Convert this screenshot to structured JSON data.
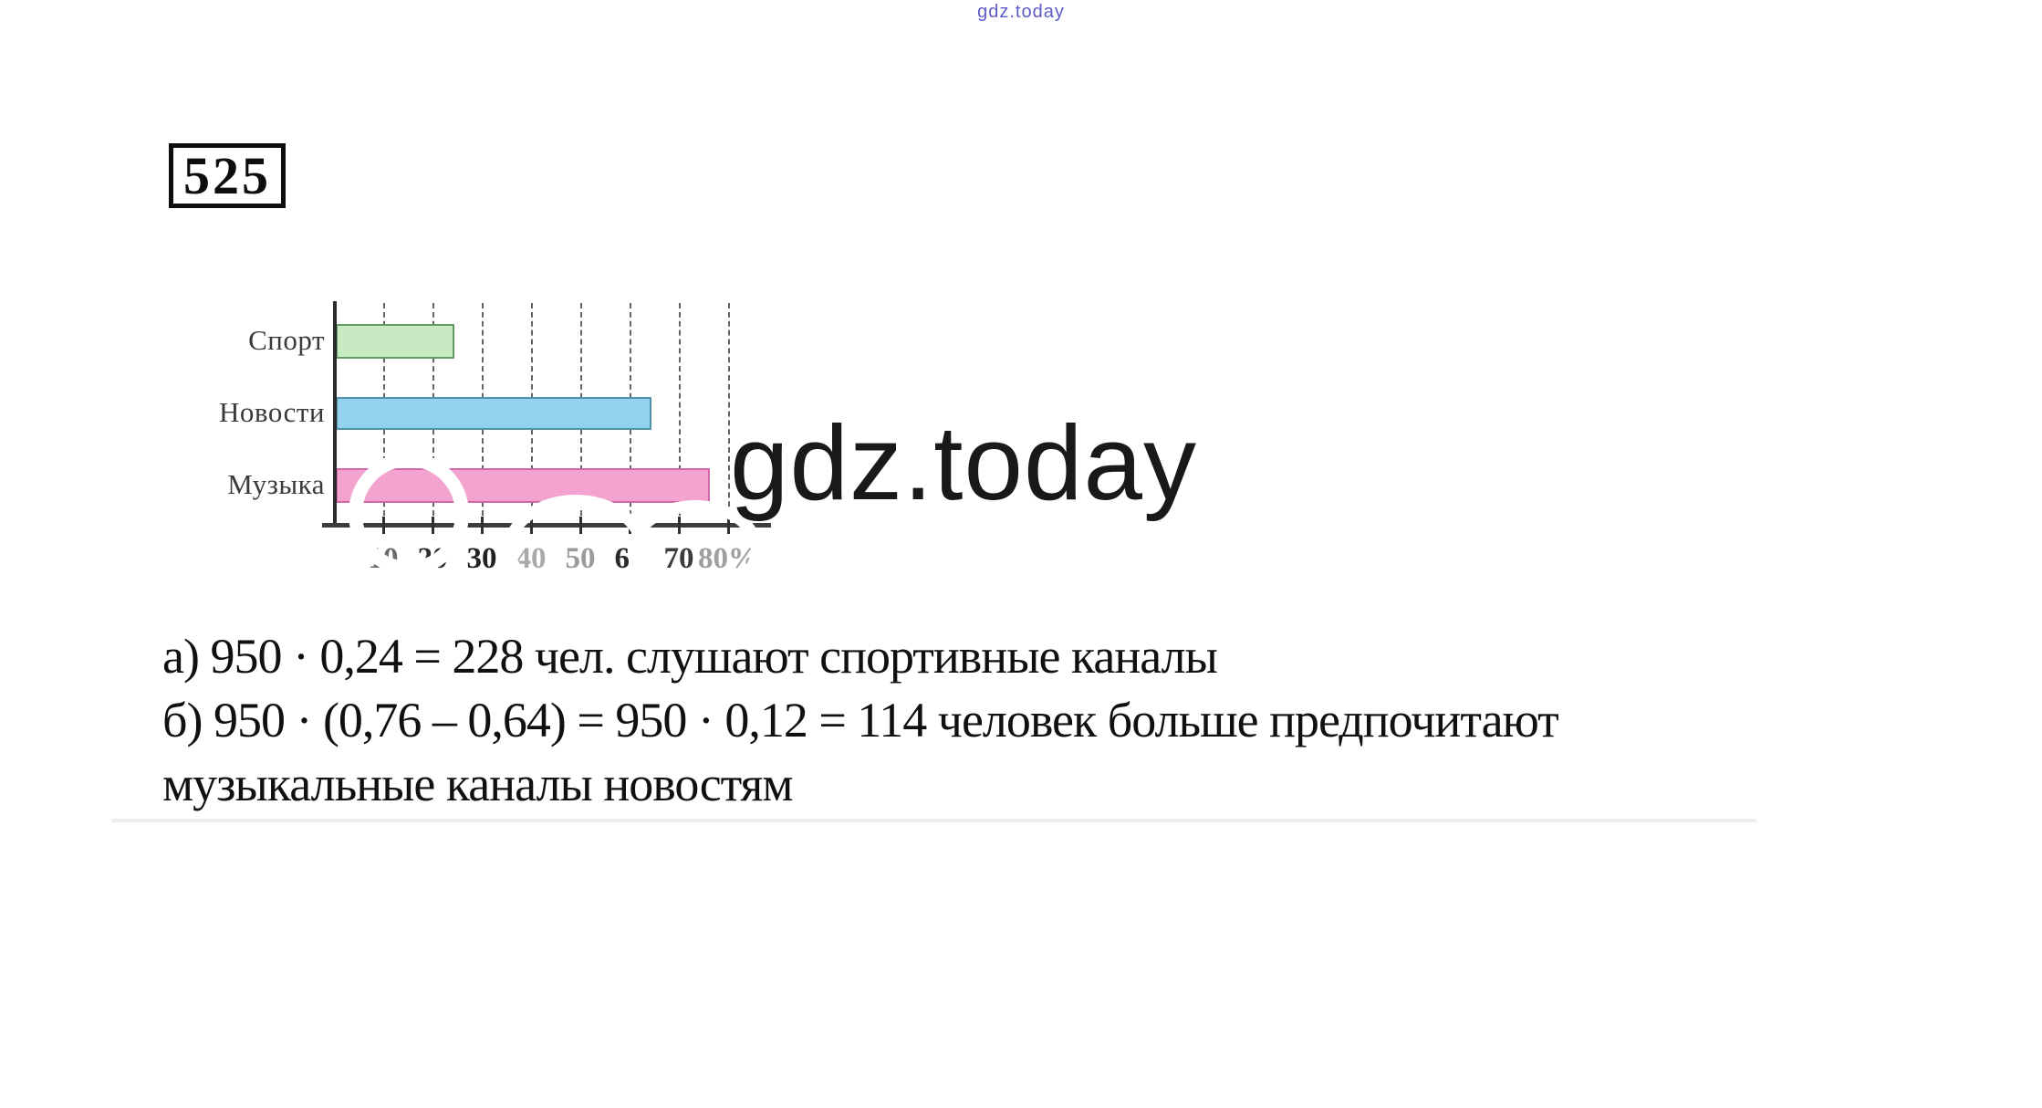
{
  "page": {
    "top_watermark": "gdz.today",
    "big_watermark": "gdz.today",
    "problem_number": "525"
  },
  "chart_data": {
    "type": "bar",
    "orientation": "horizontal",
    "title": "",
    "categories": [
      "Спорт",
      "Новости",
      "Музыка"
    ],
    "values": [
      24,
      64,
      76
    ],
    "unit": "%",
    "xlim": [
      0,
      80
    ],
    "grid": "dashed-vertical",
    "legend": "none",
    "ticks": [
      {
        "label": "10",
        "value": 10,
        "color": "#6b6b6b"
      },
      {
        "label": "20",
        "value": 20,
        "color": "#2e2e2e"
      },
      {
        "label": "30",
        "value": 30,
        "color": "#222222"
      },
      {
        "label": "40",
        "value": 40,
        "color": "#aaaaaa"
      },
      {
        "label": "50",
        "value": 50,
        "color": "#9b9b9b"
      },
      {
        "label": "60",
        "value": 60,
        "color": "#2b2b2b"
      },
      {
        "label": "70",
        "value": 70,
        "color": "#3c3c3c"
      },
      {
        "label": "80%",
        "value": 80,
        "color": "#9f9f9f"
      }
    ],
    "bar_colors": [
      {
        "fill": "#c8eac2",
        "border": "#639c63"
      },
      {
        "fill": "#92d2ec",
        "border": "#4f93ad"
      },
      {
        "fill": "#f4a2cf",
        "border": "#cf67a8"
      }
    ]
  },
  "solution": {
    "line_a": "а) 950 · 0,24 = 228 чел. слушают спортивные каналы",
    "line_b": "б) 950 · (0,76 – 0,64) = 950 · 0,12 = 114 человек больше предпочитают",
    "line_b_cont": "музыкальные каналы новостям"
  }
}
